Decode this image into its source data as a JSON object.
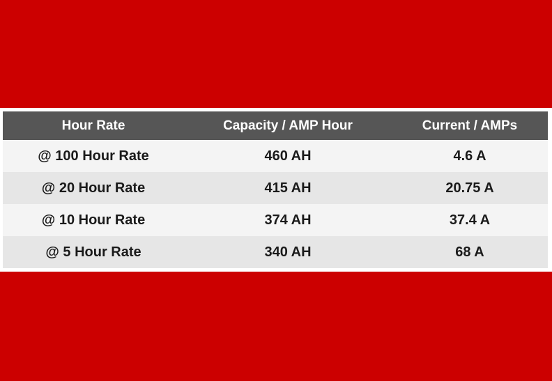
{
  "colors": {
    "band": "#cc0000",
    "header_bg": "#565656",
    "header_text": "#ffffff",
    "row_light": "#f4f4f4",
    "row_dark": "#e6e6e6"
  },
  "table": {
    "headers": [
      "Hour Rate",
      "Capacity / AMP Hour",
      "Current / AMPs"
    ],
    "rows": [
      [
        "@ 100 Hour Rate",
        "460 AH",
        "4.6 A"
      ],
      [
        "@ 20 Hour Rate",
        "415 AH",
        "20.75 A"
      ],
      [
        "@ 10 Hour Rate",
        "374 AH",
        "37.4 A"
      ],
      [
        "@ 5 Hour Rate",
        "340 AH",
        "68 A"
      ]
    ]
  }
}
